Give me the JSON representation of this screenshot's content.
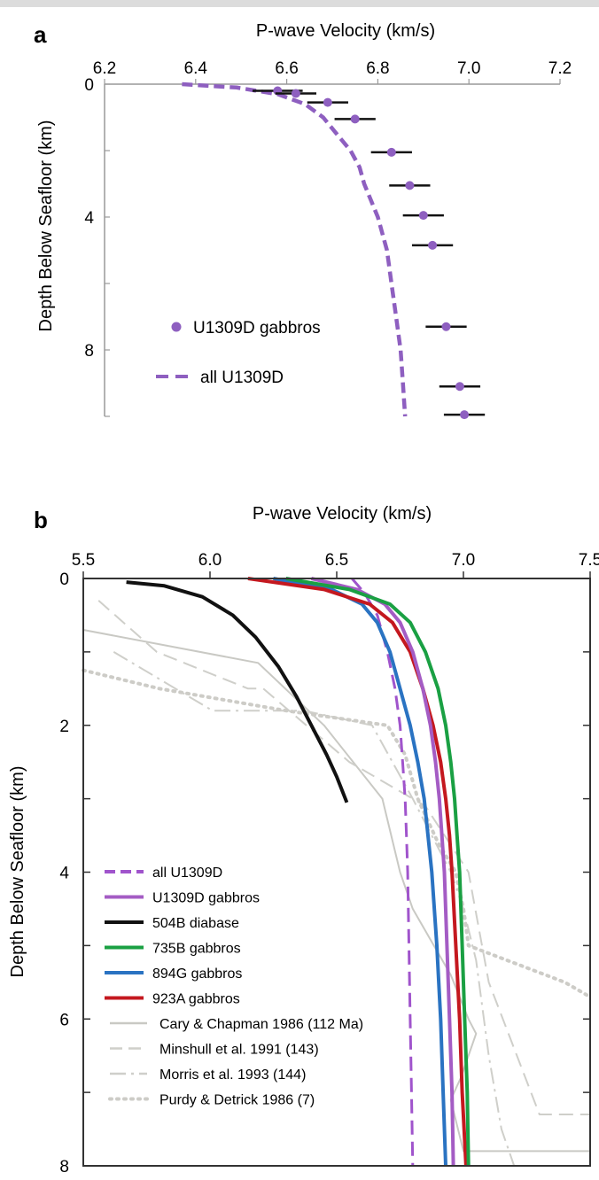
{
  "chart_data": [
    {
      "panel_label": "a",
      "type": "scatter",
      "title": "",
      "xlabel": "P-wave Velocity (km/s)",
      "ylabel": "Depth Below Seafloor (km)",
      "xlim": [
        6.2,
        7.2
      ],
      "ylim": [
        0,
        10
      ],
      "y_inverted": true,
      "x_axis_position": "top",
      "xticks": [
        "6.2",
        "6.4",
        "6.6",
        "6.8",
        "7.0",
        "7.2"
      ],
      "yticks": [
        "0",
        "4",
        "8"
      ],
      "xtick_values": [
        6.2,
        6.4,
        6.6,
        6.8,
        7.0,
        7.2
      ],
      "ytick_values": [
        0,
        4,
        8
      ],
      "ytick_minor_values": [
        2,
        6,
        10
      ],
      "legend_position": "bottom-left",
      "series": [
        {
          "name": "U1309D gabbros",
          "kind": "points-with-error-bars",
          "color": "#8e5fc0",
          "points": [
            {
              "depth": 0.2,
              "v": 6.58,
              "err": 0.055
            },
            {
              "depth": 0.28,
              "v": 6.62,
              "err": 0.045
            },
            {
              "depth": 0.55,
              "v": 6.69,
              "err": 0.045
            },
            {
              "depth": 1.05,
              "v": 6.75,
              "err": 0.045
            },
            {
              "depth": 2.05,
              "v": 6.83,
              "err": 0.045
            },
            {
              "depth": 3.05,
              "v": 6.87,
              "err": 0.045
            },
            {
              "depth": 3.95,
              "v": 6.9,
              "err": 0.045
            },
            {
              "depth": 4.85,
              "v": 6.92,
              "err": 0.045
            },
            {
              "depth": 7.3,
              "v": 6.95,
              "err": 0.045
            },
            {
              "depth": 9.1,
              "v": 6.98,
              "err": 0.045
            },
            {
              "depth": 9.95,
              "v": 6.99,
              "err": 0.045
            }
          ]
        },
        {
          "name": "all U1309D",
          "kind": "dashed-line",
          "color": "#8e5fc0",
          "depth": [
            0,
            0.1,
            0.3,
            0.6,
            1.0,
            1.5,
            2.0,
            2.5,
            3.0,
            4.0,
            5.0,
            6.0,
            7.0,
            8.0,
            9.0,
            10.0
          ],
          "v": [
            6.37,
            6.49,
            6.58,
            6.64,
            6.68,
            6.71,
            6.74,
            6.76,
            6.77,
            6.8,
            6.82,
            6.83,
            6.84,
            6.85,
            6.855,
            6.86
          ]
        }
      ]
    },
    {
      "panel_label": "b",
      "type": "line",
      "title": "",
      "xlabel": "P-wave Velocity (km/s)",
      "ylabel": "Depth Below Seafloor (km)",
      "xlim": [
        5.5,
        7.5
      ],
      "ylim": [
        0,
        8
      ],
      "y_inverted": true,
      "x_axis_position": "top",
      "xticks": [
        "5.5",
        "6.0",
        "6.5",
        "7.0",
        "7.5"
      ],
      "yticks": [
        "0",
        "2",
        "4",
        "6",
        "8"
      ],
      "xtick_values": [
        5.5,
        6.0,
        6.5,
        7.0,
        7.5
      ],
      "ytick_values": [
        0,
        2,
        4,
        6,
        8
      ],
      "ytick_minor_values": [
        1,
        3,
        5,
        7
      ],
      "legend_position": "bottom-left",
      "series": [
        {
          "name": "all U1309D",
          "color": "#a054cc",
          "style": "dashed",
          "width": 3,
          "depth": [
            0,
            0.2,
            0.5,
            1.0,
            1.5,
            2.0,
            2.5,
            3.0,
            3.5,
            4.0,
            5.0,
            6.0,
            7.0,
            8.0
          ],
          "v": [
            6.56,
            6.61,
            6.66,
            6.7,
            6.73,
            6.75,
            6.76,
            6.77,
            6.775,
            6.78,
            6.785,
            6.79,
            6.795,
            6.8
          ]
        },
        {
          "name": "U1309D gabbros",
          "color": "#a45cc4",
          "style": "solid",
          "width": 4,
          "depth": [
            0,
            0.15,
            0.35,
            0.6,
            1.0,
            1.5,
            2.0,
            2.5,
            3.0,
            3.5,
            4.0,
            5.0,
            6.0,
            7.0,
            8.0
          ],
          "v": [
            6.4,
            6.58,
            6.69,
            6.75,
            6.8,
            6.84,
            6.87,
            6.89,
            6.905,
            6.915,
            6.925,
            6.935,
            6.945,
            6.955,
            6.96
          ]
        },
        {
          "name": "504B diabase",
          "color": "#111111",
          "style": "solid",
          "width": 4,
          "depth": [
            0.05,
            0.1,
            0.25,
            0.5,
            0.8,
            1.2,
            1.6,
            2.0,
            2.4,
            2.7,
            3.05
          ],
          "v": [
            5.67,
            5.82,
            5.97,
            6.09,
            6.18,
            6.27,
            6.34,
            6.4,
            6.46,
            6.5,
            6.54
          ]
        },
        {
          "name": "735B gabbros",
          "color": "#1aa043",
          "style": "solid",
          "width": 4,
          "depth": [
            0,
            0.15,
            0.35,
            0.6,
            1.0,
            1.5,
            2.0,
            2.5,
            3.0,
            3.5,
            4.0,
            5.0,
            6.0,
            7.0,
            8.0
          ],
          "v": [
            6.3,
            6.55,
            6.71,
            6.79,
            6.85,
            6.9,
            6.93,
            6.95,
            6.965,
            6.975,
            6.985,
            6.995,
            7.005,
            7.015,
            7.02
          ]
        },
        {
          "name": "894G gabbros",
          "color": "#2a73c2",
          "style": "solid",
          "width": 4,
          "depth": [
            0,
            0.15,
            0.35,
            0.6,
            1.0,
            1.5,
            2.0,
            2.5,
            3.0,
            3.5,
            4.0,
            5.0,
            6.0,
            7.0,
            8.0
          ],
          "v": [
            6.25,
            6.48,
            6.6,
            6.66,
            6.71,
            6.75,
            6.79,
            6.82,
            6.845,
            6.86,
            6.875,
            6.895,
            6.91,
            6.92,
            6.93
          ]
        },
        {
          "name": "923A gabbros",
          "color": "#c4181f",
          "style": "solid",
          "width": 4,
          "depth": [
            0,
            0.15,
            0.35,
            0.6,
            1.0,
            1.5,
            2.0,
            2.5,
            3.0,
            3.5,
            4.0,
            5.0,
            6.0,
            7.0,
            8.0
          ],
          "v": [
            6.15,
            6.45,
            6.63,
            6.72,
            6.79,
            6.84,
            6.88,
            6.91,
            6.93,
            6.945,
            6.955,
            6.97,
            6.985,
            6.995,
            7.01
          ]
        },
        {
          "name": "Cary & Chapman 1986 (112 Ma)",
          "color": "#c9c9c4",
          "style": "solid",
          "width": 2,
          "depth": [
            0.7,
            1.15,
            2.0,
            3.0,
            4.0,
            4.5,
            5.4,
            6.0,
            6.2,
            6.8,
            7.1,
            7.8,
            7.8
          ],
          "v": [
            5.5,
            6.19,
            6.45,
            6.68,
            6.75,
            6.8,
            6.95,
            7.02,
            7.05,
            6.99,
            6.95,
            7.0,
            7.5
          ]
        },
        {
          "name": "Minshull et al. 1991 (143)",
          "color": "#cfcfca",
          "style": "dashed",
          "width": 2,
          "depth": [
            0.3,
            1.0,
            1.5,
            1.5,
            2.5,
            3.1,
            4.0,
            5.5,
            7.3,
            7.3
          ],
          "v": [
            5.56,
            5.79,
            6.15,
            6.21,
            6.55,
            6.85,
            7.02,
            7.1,
            7.3,
            7.5
          ]
        },
        {
          "name": "Morris et al. 1993 (144)",
          "color": "#cfcfca",
          "style": "dashdot",
          "width": 2,
          "depth": [
            1.0,
            1.8,
            1.8,
            2.0,
            3.0,
            4.0,
            4.5,
            5.2,
            6.5,
            7.5,
            8.0
          ],
          "v": [
            5.62,
            6.01,
            6.37,
            6.64,
            6.8,
            6.95,
            7.0,
            7.05,
            7.1,
            7.15,
            7.2
          ]
        },
        {
          "name": "Purdy & Detrick 1986 (7)",
          "color": "#cdccc7",
          "style": "dotted",
          "width": 4,
          "depth": [
            1.25,
            1.5,
            1.8,
            2.0,
            2.4,
            3.0,
            3.6,
            4.0,
            4.5,
            5.0,
            5.5,
            5.7
          ],
          "v": [
            5.5,
            5.8,
            6.3,
            6.7,
            6.77,
            6.82,
            6.9,
            6.97,
            7.0,
            7.02,
            7.4,
            7.5
          ]
        }
      ]
    }
  ]
}
